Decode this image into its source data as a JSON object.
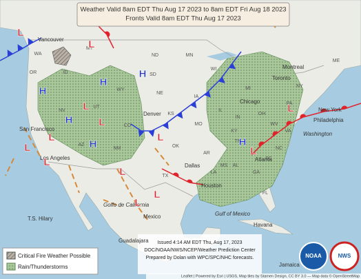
{
  "header": {
    "lines": [
      "Weather Valid 8am EDT Thu Aug 17 2023 to 8am EDT Fri Aug 18 2023",
      "Fronts Valid 8am EDT Thu Aug 17 2023"
    ]
  },
  "legend": [
    "Critical Fire Weather Possible",
    "Rain/Thunderstorms"
  ],
  "info": [
    "Issued 4:14 AM EDT Thu, Aug 17, 2023",
    "DOC/NOAA/NWS/NCEP/Weather Prediction Center",
    "Prepared by Dolan with WPC/SPC/NHC forecasts."
  ],
  "attribution": "Leaflet | Powered by Esri | USGS, Map tiles by Stamen Design, CC BY 3.0 — Map data © OpenStreetMap",
  "places": [
    "Vancouver",
    "San Francisco",
    "Los Angeles",
    "Denver",
    "Dallas",
    "Houston",
    "Chicago",
    "Toronto",
    "Montreal",
    "New York",
    "Philadelphia",
    "Atlanta",
    "Mexico",
    "Guadalajara",
    "Havana",
    "Jamaica",
    "Gulf of Mexico",
    "Golfo de California",
    "T.S. Hilary",
    "Washington"
  ],
  "states": [
    "WA",
    "OR",
    "ID",
    "MT",
    "WY",
    "NV",
    "UT",
    "CO",
    "AZ",
    "NM",
    "ND",
    "SD",
    "NE",
    "KS",
    "OK",
    "TX",
    "MN",
    "IA",
    "MO",
    "AR",
    "LA",
    "WI",
    "IL",
    "IN",
    "MI",
    "OH",
    "KY",
    "TN",
    "MS",
    "AL",
    "GA",
    "SC",
    "NC",
    "VA",
    "WV",
    "PA",
    "NY",
    "ME",
    "FL"
  ],
  "pressure_centers": [
    "L",
    "L",
    "H",
    "H",
    "H",
    "H",
    "L",
    "L",
    "L",
    "L",
    "L",
    "L",
    "L",
    "L",
    "H",
    "L",
    "L",
    "H",
    "L"
  ],
  "logos": [
    "NOAA",
    "NWS"
  ]
}
